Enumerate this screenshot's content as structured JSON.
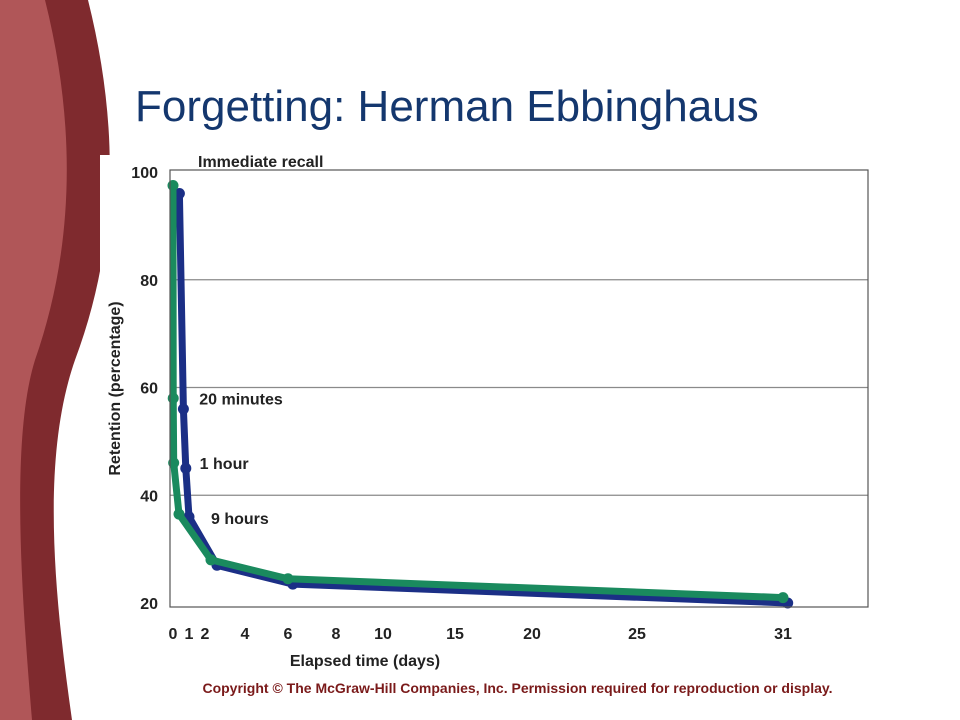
{
  "slide": {
    "title": "Forgetting: Herman Ebbinghaus",
    "copyright": "Copyright © The McGraw-Hill Companies, Inc. Permission required for reproduction or display."
  },
  "colors": {
    "title": "#14376e",
    "copyright": "#7a1a1a",
    "decor_dark": "#7f2a2e",
    "decor_light": "#b05658",
    "series_front": "#1a8a5e",
    "series_back": "#1b2f86",
    "grid": "#8a8a8a"
  },
  "chart_data": {
    "type": "line",
    "title": "",
    "xlabel": "Elapsed time (days)",
    "ylabel": "Retention (percentage)",
    "xlim": [
      0,
      33
    ],
    "ylim": [
      20,
      100
    ],
    "xticks": [
      0,
      1,
      2,
      4,
      6,
      8,
      10,
      15,
      20,
      25,
      31
    ],
    "yticks": [
      20,
      40,
      60,
      80,
      100
    ],
    "grid": true,
    "annotations": [
      {
        "label": "Immediate recall",
        "x": 0,
        "y": 97
      },
      {
        "label": "20 minutes",
        "x": 0.014,
        "y": 58
      },
      {
        "label": "1 hour",
        "x": 0.042,
        "y": 46
      },
      {
        "label": "9 hours",
        "x": 0.375,
        "y": 36
      }
    ],
    "series": [
      {
        "x": [
          0.4,
          0.65,
          0.8,
          1.0,
          2.6,
          6.2,
          31.2
        ],
        "y": [
          96,
          56,
          45,
          36,
          27,
          23.5,
          20
        ]
      },
      {
        "x": [
          0,
          0.014,
          0.042,
          0.375,
          2.3,
          6.0,
          31
        ],
        "y": [
          97.5,
          58,
          46,
          36.5,
          28,
          24.5,
          21
        ]
      }
    ]
  }
}
